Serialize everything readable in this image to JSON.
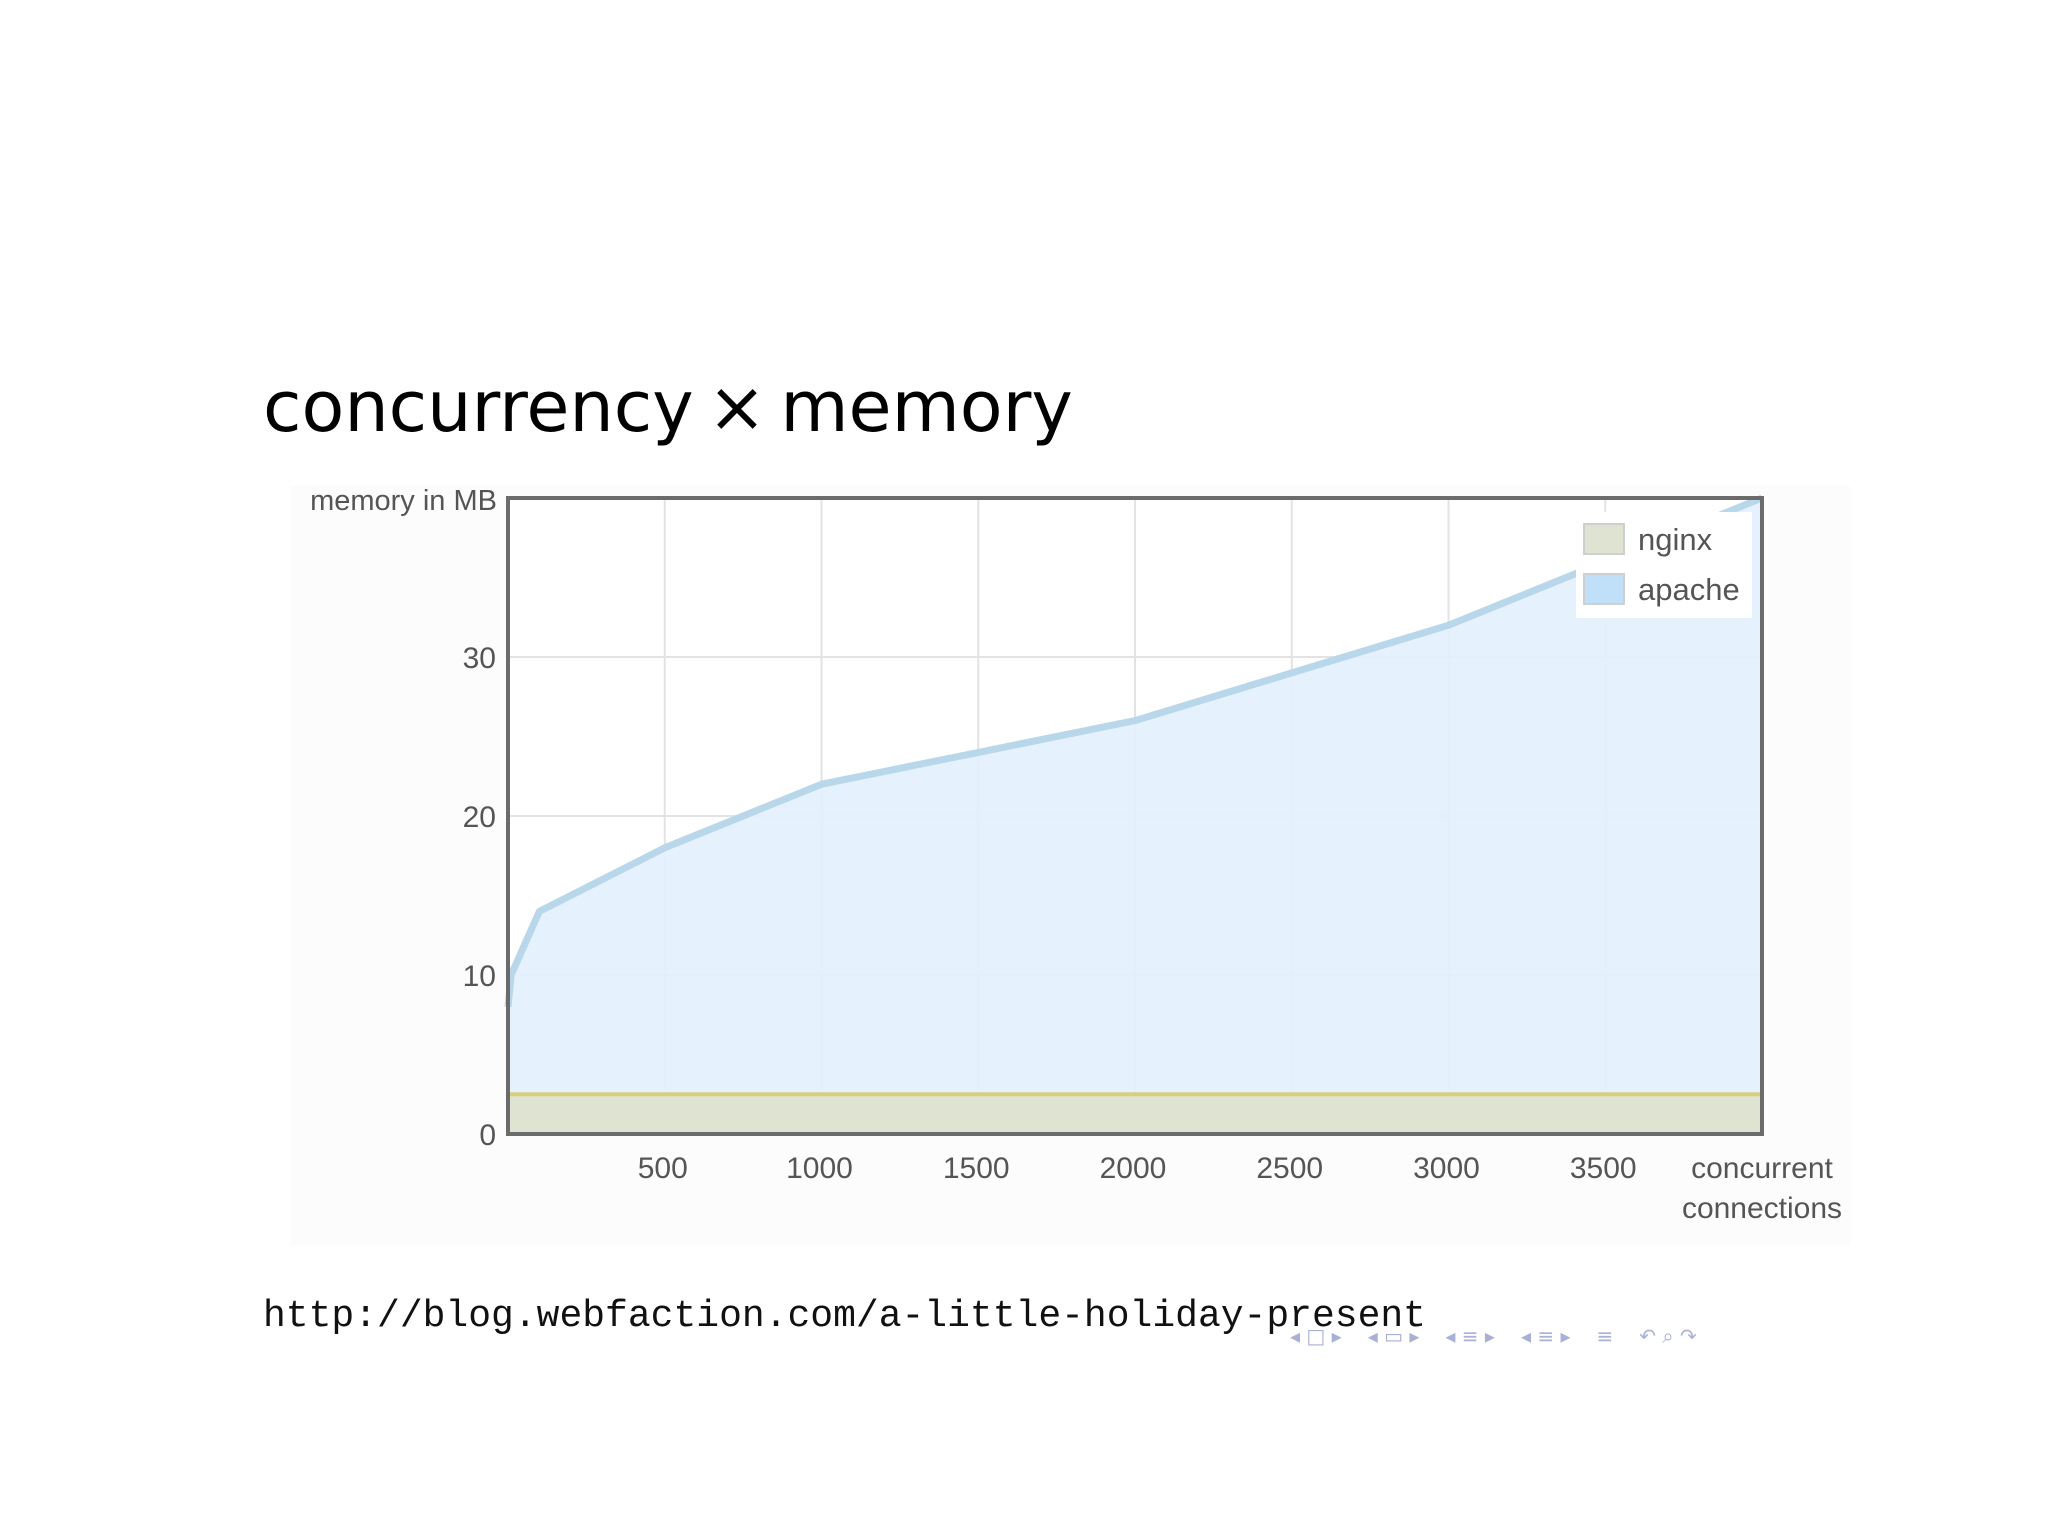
{
  "slide": {
    "title_left": "concurrency",
    "title_symbol": "×",
    "title_right": "memory",
    "source_url": "http://blog.webfaction.com/a-little-holiday-present"
  },
  "nav_controls": {
    "icons": [
      "first-frame-icon",
      "prev-frame-icon",
      "prev-section-icon",
      "next-section-icon",
      "prev-subsection-icon",
      "next-subsection-icon",
      "outline-icon",
      "back-icon",
      "search-icon",
      "forward-icon"
    ]
  },
  "chart_data": {
    "type": "area",
    "title": "",
    "ylabel": "memory in MB",
    "xlabel_lines": [
      "concurrent",
      "connections"
    ],
    "xlim": [
      0,
      4000
    ],
    "ylim": [
      0,
      40
    ],
    "x_ticks": [
      500,
      1000,
      1500,
      2000,
      2500,
      3000,
      3500
    ],
    "y_ticks": [
      0,
      10,
      20,
      30
    ],
    "grid": true,
    "legend_position": "top-right",
    "series": [
      {
        "name": "nginx",
        "color": "#dfe3d2",
        "line_color": "#d8cf7a",
        "points": [
          [
            0,
            2.5
          ],
          [
            4000,
            2.5
          ]
        ]
      },
      {
        "name": "apache",
        "color": "#e2f0fc",
        "line_color": "#b9d7ea",
        "legend_color": "#bfe0f8",
        "points": [
          [
            0,
            8
          ],
          [
            10,
            10
          ],
          [
            100,
            14
          ],
          [
            500,
            18
          ],
          [
            1000,
            22
          ],
          [
            1500,
            24
          ],
          [
            2000,
            26
          ],
          [
            2500,
            29
          ],
          [
            3000,
            32
          ],
          [
            3500,
            36
          ],
          [
            4000,
            40
          ]
        ]
      }
    ]
  }
}
